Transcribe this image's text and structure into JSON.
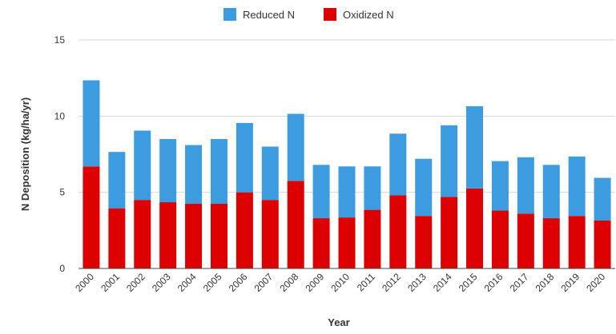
{
  "chart_data": {
    "type": "bar",
    "stacked": true,
    "categories": [
      "2000",
      "2001",
      "2002",
      "2003",
      "2004",
      "2005",
      "2006",
      "2007",
      "2008",
      "2009",
      "2010",
      "2011",
      "2012",
      "2013",
      "2014",
      "2015",
      "2016",
      "2017",
      "2018",
      "2019",
      "2020"
    ],
    "series": [
      {
        "name": "Oxidized N",
        "color": "#dd0000",
        "values": [
          6.7,
          3.95,
          4.5,
          4.35,
          4.25,
          4.25,
          5.0,
          4.5,
          5.75,
          3.3,
          3.35,
          3.85,
          4.8,
          3.45,
          4.7,
          5.25,
          3.8,
          3.6,
          3.3,
          3.45,
          3.15
        ]
      },
      {
        "name": "Reduced N",
        "color": "#3d9be0",
        "values": [
          5.65,
          3.7,
          4.55,
          4.15,
          3.85,
          4.25,
          4.55,
          3.5,
          4.4,
          3.5,
          3.35,
          2.85,
          4.05,
          3.75,
          4.7,
          5.4,
          3.25,
          3.7,
          3.5,
          3.9,
          2.8
        ]
      }
    ],
    "legend_order": [
      "Reduced N",
      "Oxidized N"
    ],
    "legend_position": "top-center",
    "xlabel": "Year",
    "ylabel": "N Deposition (kg/ha/yr)",
    "ylim": [
      0,
      15
    ],
    "yticks": [
      "0",
      "5",
      "10",
      "15"
    ],
    "grid": "horizontal"
  }
}
